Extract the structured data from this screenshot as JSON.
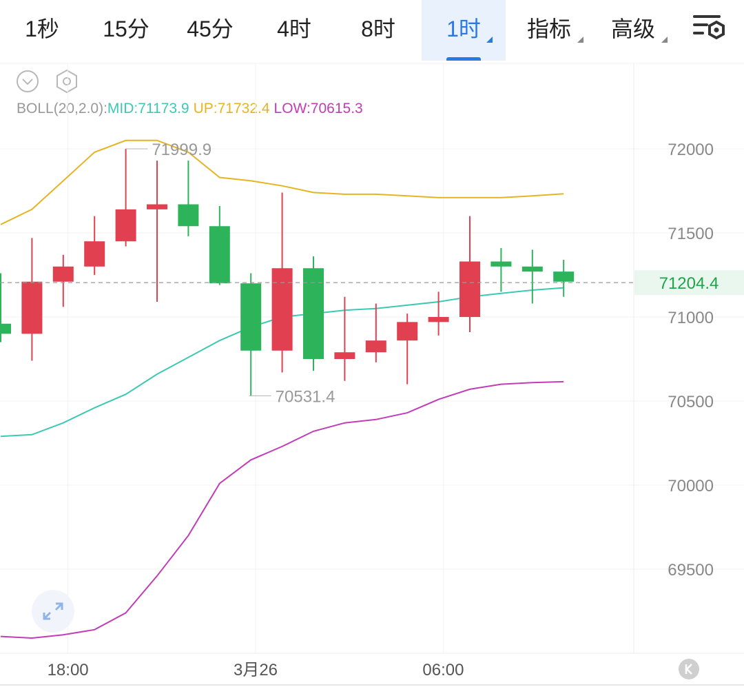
{
  "tabs": [
    {
      "label": "1秒",
      "active": false,
      "dropdown": false
    },
    {
      "label": "15分",
      "active": false,
      "dropdown": false
    },
    {
      "label": "45分",
      "active": false,
      "dropdown": false
    },
    {
      "label": "4时",
      "active": false,
      "dropdown": false
    },
    {
      "label": "8时",
      "active": false,
      "dropdown": false
    },
    {
      "label": "1时",
      "active": true,
      "dropdown": true
    },
    {
      "label": "指标",
      "active": false,
      "dropdown": true
    },
    {
      "label": "高级",
      "active": false,
      "dropdown": true
    }
  ],
  "toolbar": {
    "settings_icon": "chart-settings-icon",
    "collapse_icon": "chevron-down-circle-icon",
    "gear_icon": "hexagon-gear-icon",
    "fullscreen_icon": "expand-arrows-icon",
    "brand_icon": "k-logo-icon"
  },
  "legend": {
    "name": "BOLL(20,2.0):",
    "mid": "MID:71173.9",
    "up": "UP:71732.4",
    "low": "LOW:70615.3"
  },
  "colors": {
    "up_candle": "#e0404f",
    "down_candle": "#2db35a",
    "mid_line": "#3cc9b4",
    "up_line": "#e6b422",
    "low_line": "#c23cb6",
    "accent": "#2a78e4",
    "price_tag": "#1fa34a"
  },
  "chart_data": {
    "type": "candlestick",
    "ylim": [
      69100,
      72250
    ],
    "y_ticks": [
      72000,
      71500,
      71000,
      70500,
      70000,
      69500
    ],
    "x_ticks": [
      {
        "index": 2.15,
        "label": "18:00"
      },
      {
        "index": 8.15,
        "label": "3月26"
      },
      {
        "index": 14.15,
        "label": "06:00"
      }
    ],
    "current_price": {
      "value": 71204.4,
      "label": "71204.4"
    },
    "annotations": [
      {
        "index": 3.95,
        "value": 71999.9,
        "label": "71999.9"
      },
      {
        "index": 7.9,
        "value": 70531.4,
        "label": "70531.4"
      }
    ],
    "candles": [
      {
        "o": 70960,
        "h": 71260,
        "l": 70850,
        "c": 70900
      },
      {
        "o": 70900,
        "h": 71470,
        "l": 70740,
        "c": 71210
      },
      {
        "o": 71210,
        "h": 71370,
        "l": 71060,
        "c": 71300
      },
      {
        "o": 71300,
        "h": 71600,
        "l": 71250,
        "c": 71450
      },
      {
        "o": 71450,
        "h": 71999.9,
        "l": 71420,
        "c": 71640
      },
      {
        "o": 71640,
        "h": 71930,
        "l": 71090,
        "c": 71670
      },
      {
        "o": 71670,
        "h": 71930,
        "l": 71480,
        "c": 71540
      },
      {
        "o": 71540,
        "h": 71660,
        "l": 71190,
        "c": 71200
      },
      {
        "o": 71200,
        "h": 71260,
        "l": 70531.4,
        "c": 70800
      },
      {
        "o": 70800,
        "h": 71740,
        "l": 70670,
        "c": 71290
      },
      {
        "o": 71290,
        "h": 71360,
        "l": 70680,
        "c": 70750
      },
      {
        "o": 70750,
        "h": 71120,
        "l": 70620,
        "c": 70790
      },
      {
        "o": 70790,
        "h": 71080,
        "l": 70730,
        "c": 70860
      },
      {
        "o": 70860,
        "h": 71020,
        "l": 70600,
        "c": 70970
      },
      {
        "o": 70970,
        "h": 71150,
        "l": 70890,
        "c": 71000
      },
      {
        "o": 71000,
        "h": 71600,
        "l": 70910,
        "c": 71330
      },
      {
        "o": 71330,
        "h": 71410,
        "l": 71150,
        "c": 71300
      },
      {
        "o": 71300,
        "h": 71400,
        "l": 71080,
        "c": 71270
      },
      {
        "o": 71270,
        "h": 71340,
        "l": 71120,
        "c": 71210
      }
    ],
    "boll": {
      "mid": [
        70290,
        70300,
        70370,
        70460,
        70540,
        70660,
        70760,
        70860,
        70940,
        71000,
        71020,
        71040,
        71050,
        71070,
        71090,
        71120,
        71140,
        71160,
        71173.9
      ],
      "up": [
        71550,
        71640,
        71810,
        71980,
        72050,
        72050,
        71980,
        71830,
        71810,
        71780,
        71740,
        71730,
        71730,
        71720,
        71710,
        71710,
        71710,
        71720,
        71732.4
      ],
      "low": [
        69100,
        69090,
        69110,
        69140,
        69240,
        69460,
        69700,
        70010,
        70150,
        70230,
        70320,
        70370,
        70390,
        70430,
        70510,
        70570,
        70600,
        70610,
        70615.3
      ]
    }
  }
}
